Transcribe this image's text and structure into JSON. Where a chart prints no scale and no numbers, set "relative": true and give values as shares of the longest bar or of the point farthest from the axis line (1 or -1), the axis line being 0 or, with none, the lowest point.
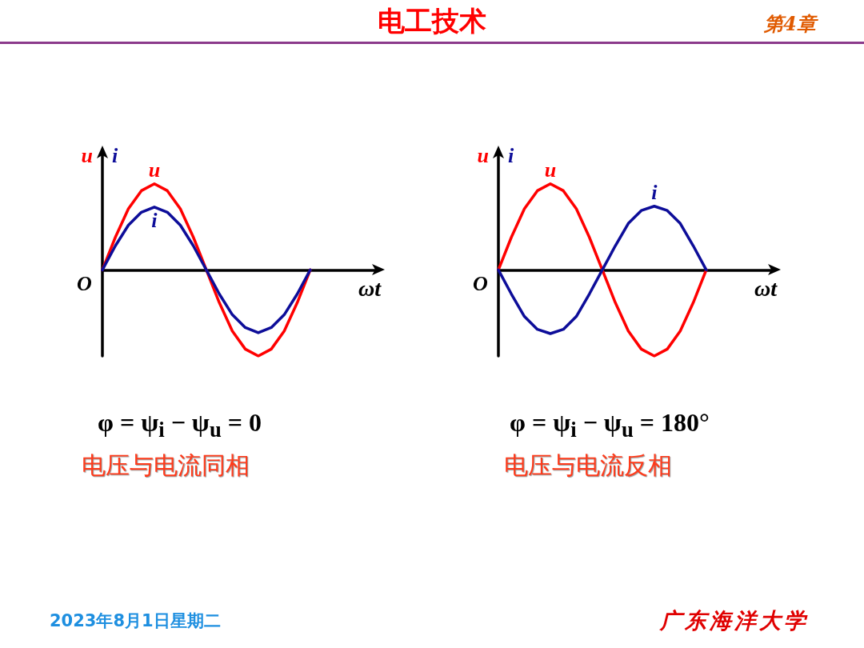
{
  "chart_data": [
    {
      "type": "line",
      "relative": true,
      "xlabel": "ωt",
      "ylabel": "u i",
      "legend": false,
      "grid": false,
      "marker": "none",
      "line_style": "solid",
      "categories": [
        null,
        null,
        null,
        null,
        null,
        null,
        null,
        null,
        null,
        null,
        null,
        null,
        null,
        null,
        null,
        null,
        null
      ],
      "series": [
        {
          "name": "u",
          "color": "#ff0000",
          "values": [
            0,
            0.38,
            0.71,
            0.92,
            1,
            0.92,
            0.71,
            0.38,
            0,
            -0.38,
            -0.71,
            -0.92,
            -1,
            -0.92,
            -0.71,
            -0.38,
            0
          ]
        },
        {
          "name": "i",
          "color": "#0d0d99",
          "values": [
            0,
            0.28,
            0.52,
            0.67,
            0.73,
            0.67,
            0.52,
            0.28,
            0,
            -0.28,
            -0.52,
            -0.67,
            -0.73,
            -0.67,
            -0.52,
            -0.28,
            0
          ]
        }
      ],
      "annotations": [
        "O",
        "φ = ψ$_{i}$ − ψ$_{u}$ = 0",
        "电压与电流同相"
      ]
    },
    {
      "type": "line",
      "relative": true,
      "xlabel": "ωt",
      "ylabel": "u i",
      "legend": false,
      "grid": false,
      "marker": "none",
      "line_style": "solid",
      "categories": [
        null,
        null,
        null,
        null,
        null,
        null,
        null,
        null,
        null,
        null,
        null,
        null,
        null,
        null,
        null,
        null,
        null
      ],
      "series": [
        {
          "name": "u",
          "color": "#ff0000",
          "values": [
            0,
            0.38,
            0.71,
            0.92,
            1,
            0.92,
            0.71,
            0.38,
            0,
            -0.38,
            -0.71,
            -0.92,
            -1,
            -0.92,
            -0.71,
            -0.38,
            0
          ]
        },
        {
          "name": "i",
          "color": "#0d0d99",
          "values": [
            0,
            -0.28,
            -0.54,
            -0.69,
            -0.74,
            -0.69,
            -0.54,
            -0.28,
            0,
            0.28,
            0.54,
            0.69,
            0.74,
            0.69,
            0.54,
            0.28,
            0
          ]
        }
      ],
      "annotations": [
        "O",
        "φ = ψ$_{i}$ − ψ$_{u}$ = 180°",
        "电压与电流反相"
      ]
    },
    {
      "type": "other",
      "title": "电工技术",
      "annotations": [
        "第4章",
        "2023年8月1日星期二",
        "广东海洋大学"
      ]
    }
  ]
}
